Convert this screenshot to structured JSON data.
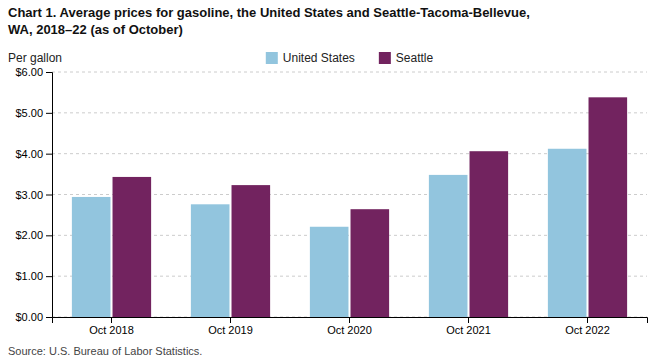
{
  "chart_data": {
    "type": "bar",
    "title": [
      "Chart 1. Average prices for gasoline, the United States and Seattle-Tacoma-Bellevue,",
      "WA, 2018–22 (as of October)"
    ],
    "ylabel": "Per gallon",
    "source": "Source: U.S. Bureau of Labor Statistics.",
    "categories": [
      "Oct 2018",
      "Oct 2019",
      "Oct 2020",
      "Oct 2021",
      "Oct 2022"
    ],
    "series": [
      {
        "name": "United States",
        "color": "#92C5DE",
        "values": [
          2.94,
          2.76,
          2.21,
          3.48,
          4.12
        ]
      },
      {
        "name": "Seattle",
        "color": "#72235F",
        "values": [
          3.43,
          3.23,
          2.64,
          4.06,
          5.38
        ]
      }
    ],
    "ylim": [
      0,
      6.0
    ],
    "yticks": [
      {
        "value": 0.0,
        "label": "$0.00"
      },
      {
        "value": 1.0,
        "label": "$1.00"
      },
      {
        "value": 2.0,
        "label": "$2.00"
      },
      {
        "value": 3.0,
        "label": "$3.00"
      },
      {
        "value": 4.0,
        "label": "$4.00"
      },
      {
        "value": 5.0,
        "label": "$5.00"
      },
      {
        "value": 6.0,
        "label": "$6.00"
      }
    ],
    "grid": true,
    "legend": "top"
  }
}
